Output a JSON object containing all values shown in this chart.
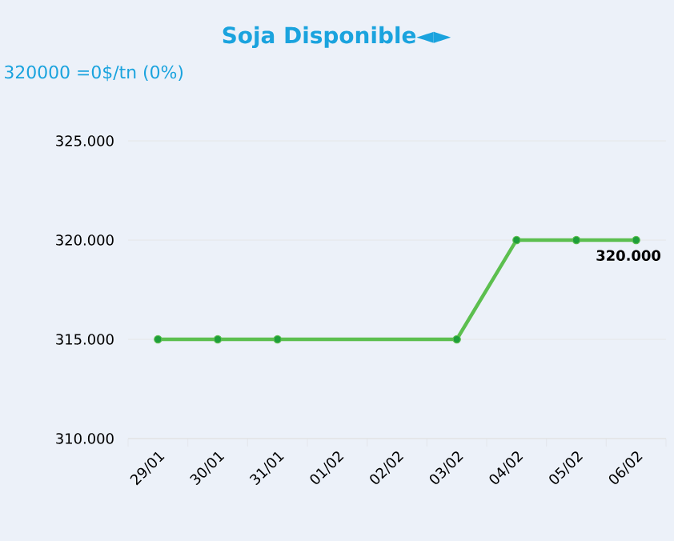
{
  "chart_data": {
    "type": "line",
    "title": "Soja Disponible◄►",
    "subtitle": "320000 =0$/tn (0%)",
    "categories": [
      "29/01",
      "30/01",
      "31/01",
      "01/02",
      "02/02",
      "03/02",
      "04/02",
      "05/02",
      "06/02"
    ],
    "series": [
      {
        "color": "#5cbf4f",
        "values": [
          315000,
          315000,
          315000,
          null,
          null,
          315000,
          320000,
          320000,
          320000
        ],
        "value_labels": [
          null,
          null,
          null,
          null,
          null,
          null,
          null,
          null,
          "320.000"
        ]
      }
    ],
    "ylim": [
      310000,
      325000
    ],
    "yticks": [
      {
        "value": 310000,
        "label": "310.000"
      },
      {
        "value": 315000,
        "label": "315.000"
      },
      {
        "value": 320000,
        "label": "320.000"
      },
      {
        "value": 325000,
        "label": "325.000"
      }
    ],
    "grid": "y",
    "marker": "circle",
    "line_style": "solid"
  }
}
